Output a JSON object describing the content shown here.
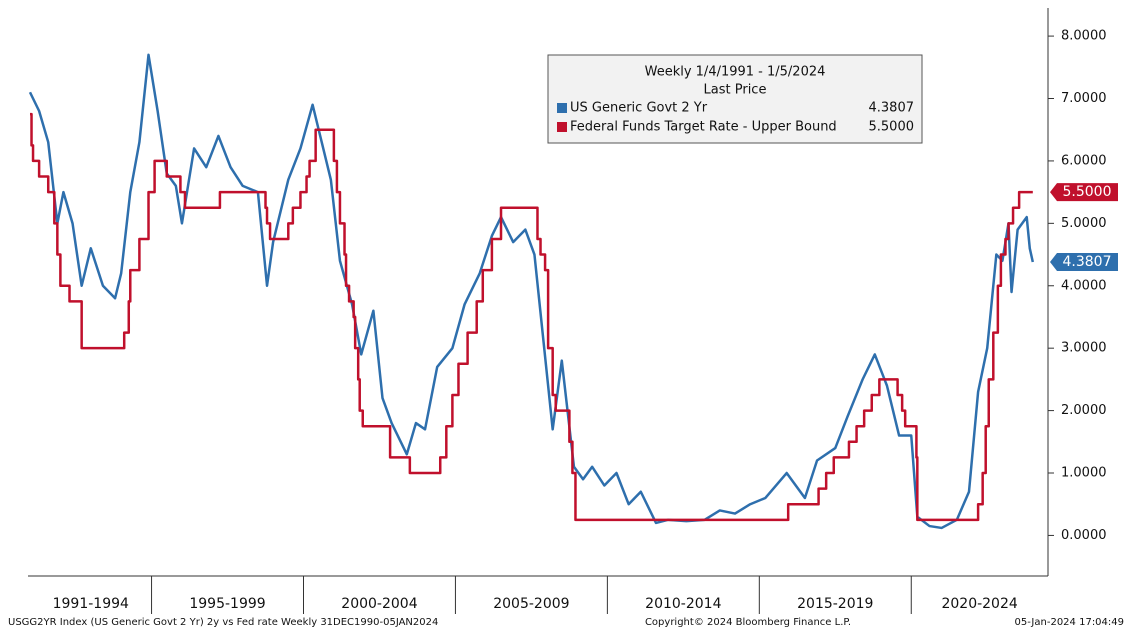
{
  "chart_data": {
    "type": "line",
    "legend_title": "Weekly 1/4/1991 - 1/5/2024",
    "legend_subtitle": "Last Price",
    "footer_left": "USGG2YR Index (US Generic Govt 2 Yr) 2y vs Fed rate  Weekly 31DEC1990-05JAN2024",
    "footer_center": "Copyright© 2024 Bloomberg Finance L.P.",
    "footer_right": "05-Jan-2024 17:04:49",
    "xlim": [
      1991,
      2024.5
    ],
    "xticks": [
      {
        "value": 1991,
        "label": "1991-1994"
      },
      {
        "value": 1995,
        "label": "1995-1999"
      },
      {
        "value": 2000,
        "label": "2000-2004"
      },
      {
        "value": 2005,
        "label": "2005-2009"
      },
      {
        "value": 2010,
        "label": "2010-2014"
      },
      {
        "value": 2015,
        "label": "2015-2019"
      },
      {
        "value": 2020,
        "label": "2020-2024"
      }
    ],
    "ylim": [
      -0.65,
      8.45
    ],
    "yticks": [
      {
        "value": 0,
        "label": "0.0000"
      },
      {
        "value": 1,
        "label": "1.0000"
      },
      {
        "value": 2,
        "label": "2.0000"
      },
      {
        "value": 3,
        "label": "3.0000"
      },
      {
        "value": 4,
        "label": "4.0000"
      },
      {
        "value": 5,
        "label": "5.0000"
      },
      {
        "value": 6,
        "label": "6.0000"
      },
      {
        "value": 7,
        "label": "7.0000"
      },
      {
        "value": 8,
        "label": "8.0000"
      }
    ],
    "series": [
      {
        "name": "US Generic Govt 2 Yr",
        "color": "#2e6fad",
        "step": false,
        "last": {
          "value": 4.3807,
          "label": "4.3807"
        },
        "x": [
          1991.0,
          1991.3,
          1991.6,
          1991.9,
          1992.1,
          1992.4,
          1992.7,
          1993.0,
          1993.4,
          1993.8,
          1994.0,
          1994.3,
          1994.6,
          1994.9,
          1995.2,
          1995.5,
          1995.8,
          1996.0,
          1996.4,
          1996.8,
          1997.2,
          1997.6,
          1998.0,
          1998.5,
          1998.8,
          1999.0,
          1999.5,
          1999.9,
          2000.3,
          2000.6,
          2000.9,
          2001.2,
          2001.6,
          2001.9,
          2002.3,
          2002.6,
          2002.9,
          2003.4,
          2003.7,
          2004.0,
          2004.4,
          2004.9,
          2005.3,
          2005.8,
          2006.2,
          2006.5,
          2006.9,
          2007.3,
          2007.6,
          2007.9,
          2008.2,
          2008.5,
          2008.9,
          2009.2,
          2009.5,
          2009.9,
          2010.3,
          2010.7,
          2011.1,
          2011.6,
          2012.0,
          2012.6,
          2013.2,
          2013.7,
          2014.2,
          2014.7,
          2015.2,
          2015.9,
          2016.5,
          2016.9,
          2017.5,
          2017.9,
          2018.4,
          2018.8,
          2019.2,
          2019.6,
          2020.0,
          2020.2,
          2020.6,
          2021.0,
          2021.5,
          2021.9,
          2022.2,
          2022.5,
          2022.8,
          2023.0,
          2023.2,
          2023.3,
          2023.5,
          2023.8,
          2023.9,
          2024.0
        ],
        "values": [
          7.1,
          6.8,
          6.3,
          5.0,
          5.5,
          5.0,
          4.0,
          4.6,
          4.0,
          3.8,
          4.2,
          5.5,
          6.3,
          7.7,
          6.8,
          5.8,
          5.6,
          5.0,
          6.2,
          5.9,
          6.4,
          5.9,
          5.6,
          5.5,
          4.0,
          4.7,
          5.7,
          6.2,
          6.9,
          6.3,
          5.7,
          4.4,
          3.7,
          2.9,
          3.6,
          2.2,
          1.8,
          1.3,
          1.8,
          1.7,
          2.7,
          3.0,
          3.7,
          4.2,
          4.8,
          5.1,
          4.7,
          4.9,
          4.5,
          3.1,
          1.7,
          2.8,
          1.1,
          0.9,
          1.1,
          0.8,
          1.0,
          0.5,
          0.7,
          0.2,
          0.25,
          0.23,
          0.25,
          0.4,
          0.35,
          0.5,
          0.6,
          1.0,
          0.6,
          1.2,
          1.4,
          1.9,
          2.5,
          2.9,
          2.4,
          1.6,
          1.6,
          0.3,
          0.15,
          0.12,
          0.25,
          0.7,
          2.3,
          3.0,
          4.5,
          4.4,
          5.0,
          3.9,
          4.9,
          5.1,
          4.6,
          4.3807
        ]
      },
      {
        "name": "Federal Funds Target Rate - Upper Bound",
        "color": "#c0102c",
        "step": true,
        "last": {
          "value": 5.5,
          "label": "5.5000"
        },
        "x": [
          1991.0,
          1991.05,
          1991.1,
          1991.3,
          1991.6,
          1991.8,
          1991.9,
          1992.0,
          1992.3,
          1992.7,
          1994.1,
          1994.25,
          1994.3,
          1994.6,
          1994.9,
          1995.1,
          1995.5,
          1995.95,
          1996.1,
          1997.25,
          1998.75,
          1998.8,
          1998.9,
          1999.5,
          1999.65,
          1999.9,
          2000.1,
          2000.2,
          2000.4,
          2001.0,
          2001.1,
          2001.2,
          2001.35,
          2001.4,
          2001.5,
          2001.65,
          2001.7,
          2001.8,
          2001.85,
          2001.95,
          2002.85,
          2003.5,
          2004.5,
          2004.7,
          2004.9,
          2005.1,
          2005.4,
          2005.7,
          2005.9,
          2006.2,
          2006.5,
          2007.7,
          2007.8,
          2007.95,
          2008.05,
          2008.2,
          2008.3,
          2008.75,
          2008.85,
          2008.95,
          2015.95,
          2016.95,
          2017.2,
          2017.45,
          2017.95,
          2018.2,
          2018.45,
          2018.7,
          2018.95,
          2019.55,
          2019.7,
          2019.8,
          2020.17,
          2020.2,
          2022.2,
          2022.35,
          2022.45,
          2022.55,
          2022.7,
          2022.85,
          2022.95,
          2023.1,
          2023.2,
          2023.35,
          2023.55,
          2024.0
        ],
        "values": [
          6.75,
          6.25,
          6.0,
          5.75,
          5.5,
          5.0,
          4.5,
          4.0,
          3.75,
          3.0,
          3.25,
          3.75,
          4.25,
          4.75,
          5.5,
          6.0,
          5.75,
          5.5,
          5.25,
          5.5,
          5.25,
          5.0,
          4.75,
          5.0,
          5.25,
          5.5,
          5.75,
          6.0,
          6.5,
          6.0,
          5.5,
          5.0,
          4.5,
          4.0,
          3.75,
          3.5,
          3.0,
          2.5,
          2.0,
          1.75,
          1.25,
          1.0,
          1.25,
          1.75,
          2.25,
          2.75,
          3.25,
          3.75,
          4.25,
          4.75,
          5.25,
          4.75,
          4.5,
          4.25,
          3.0,
          2.25,
          2.0,
          1.5,
          1.0,
          0.25,
          0.5,
          0.75,
          1.0,
          1.25,
          1.5,
          1.75,
          2.0,
          2.25,
          2.5,
          2.25,
          2.0,
          1.75,
          1.25,
          0.25,
          0.5,
          1.0,
          1.75,
          2.5,
          3.25,
          4.0,
          4.5,
          4.75,
          5.0,
          5.25,
          5.5,
          5.5
        ]
      }
    ]
  }
}
